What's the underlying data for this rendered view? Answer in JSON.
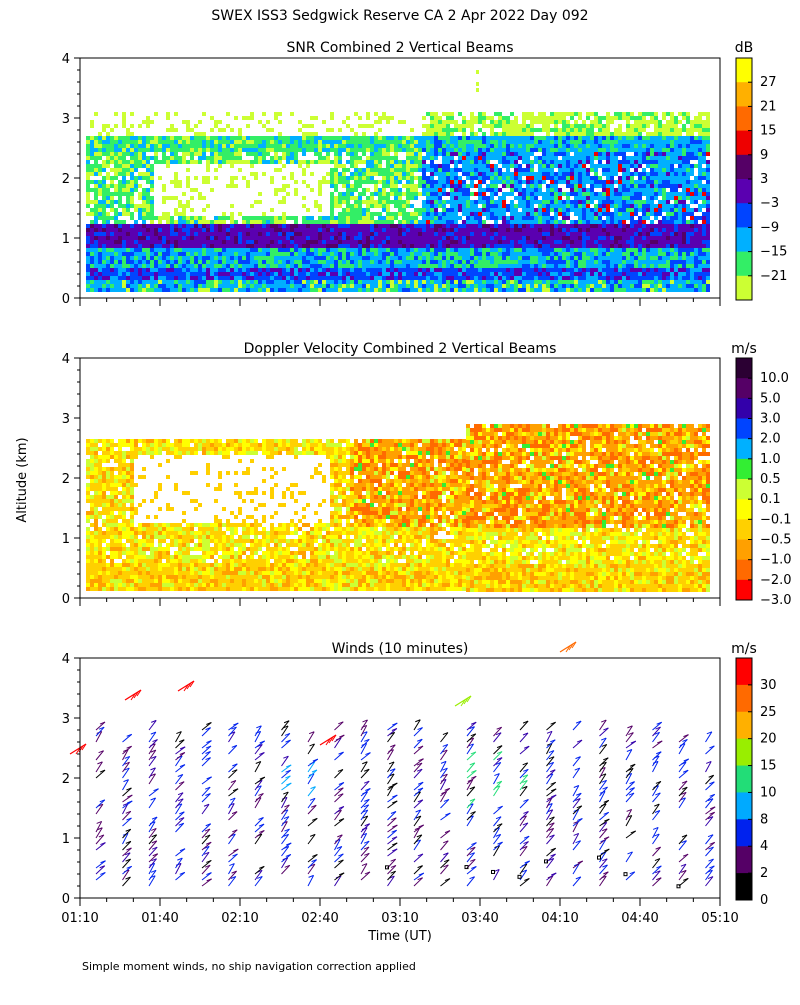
{
  "header": {
    "title": "SWEX ISS3 Sedgwick Reserve CA   2 Apr 2022 Day 092"
  },
  "footer": {
    "note": "Simple moment winds, no ship navigation correction applied"
  },
  "shared_axes": {
    "ylabel": "Altitude (km)",
    "xlabel": "Time (UT)"
  },
  "chart_data": [
    {
      "type": "heatmap",
      "title": "SNR Combined 2 Vertical Beams",
      "ylabel": "Altitude (km)",
      "ylim": [
        0,
        4
      ],
      "yticks": [
        "0",
        "1",
        "2",
        "3",
        "4"
      ],
      "colorbar": {
        "unit": "dB",
        "labels": [
          "27",
          "21",
          "15",
          "9",
          "3",
          "−3",
          "−9",
          "−15",
          "−21"
        ],
        "colors": [
          "#ffff00",
          "#ffb000",
          "#ff6a00",
          "#ee0000",
          "#550066",
          "#5a00b0",
          "#0044ff",
          "#00b0ff",
          "#33ee66",
          "#ccff33"
        ]
      }
    },
    {
      "type": "heatmap",
      "title": "Doppler Velocity Combined 2 Vertical Beams",
      "ylabel": "Altitude (km)",
      "ylim": [
        0,
        4
      ],
      "yticks": [
        "0",
        "1",
        "2",
        "3",
        "4"
      ],
      "colorbar": {
        "unit": "m/s",
        "labels": [
          "10.0",
          "5.0",
          "3.0",
          "2.0",
          "1.0",
          "0.5",
          "0.1",
          "−0.1",
          "−0.5",
          "−1.0",
          "−2.0",
          "−3.0"
        ],
        "colors": [
          "#2b0033",
          "#550066",
          "#3300aa",
          "#0044ff",
          "#00b0ff",
          "#33ee33",
          "#ccff33",
          "#ffff00",
          "#ffd000",
          "#ffa000",
          "#ff6a00",
          "#ff0000"
        ]
      }
    },
    {
      "type": "scatter",
      "title": "Winds (10 minutes)",
      "ylabel": "Altitude (km)",
      "xlabel": "Time (UT)",
      "ylim": [
        0,
        4
      ],
      "yticks": [
        "0",
        "1",
        "2",
        "3",
        "4"
      ],
      "x_tick_labels": [
        "01:10",
        "01:40",
        "02:10",
        "02:40",
        "03:10",
        "03:40",
        "04:10",
        "04:40",
        "05:10"
      ],
      "colorbar": {
        "unit": "m/s",
        "labels": [
          "30",
          "25",
          "20",
          "15",
          "10",
          "8",
          "4",
          "2",
          "0"
        ],
        "colors": [
          "#ff0000",
          "#ff6a00",
          "#ffb000",
          "#99ee00",
          "#22dd77",
          "#00aaff",
          "#0022ee",
          "#550066",
          "#000000"
        ]
      }
    }
  ]
}
